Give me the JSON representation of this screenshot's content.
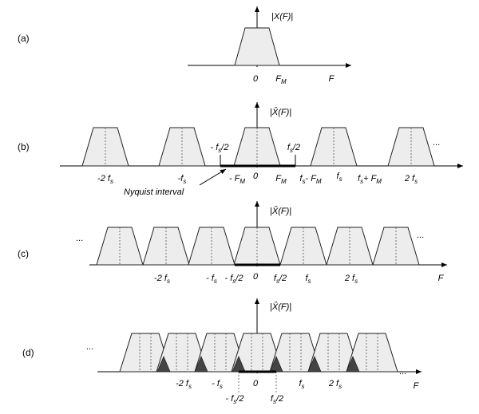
{
  "panels": [
    {
      "id": "a",
      "label": "(a)",
      "spectrum_label": "|X(F)|",
      "tick_labels": [
        {
          "key": "zero",
          "text": "0"
        },
        {
          "key": "fm",
          "text": "F",
          "sub": "M"
        },
        {
          "key": "axis",
          "text": "F"
        }
      ]
    },
    {
      "id": "b",
      "label": "(b)",
      "spectrum_label": "|X̂(F)|",
      "ellipsis": "...",
      "callout": "Nyquist interval",
      "tick_labels": [
        {
          "key": "m2fs",
          "text": "-2 f",
          "sub": "s"
        },
        {
          "key": "mfs",
          "text": "-f",
          "sub": "s"
        },
        {
          "key": "mfs2",
          "text": "- f",
          "sub": "s",
          "tail": "/2"
        },
        {
          "key": "mfm",
          "text": "- F",
          "sub": "M"
        },
        {
          "key": "zero",
          "text": "0"
        },
        {
          "key": "fm",
          "text": "F",
          "sub": "M"
        },
        {
          "key": "fs2",
          "text": "f",
          "sub": "s",
          "tail": "/2"
        },
        {
          "key": "fsmfm",
          "text": "f",
          "sub": "s",
          "tail": "- F",
          "sub2": "M"
        },
        {
          "key": "fs",
          "text": "f",
          "sub": "s"
        },
        {
          "key": "fspfm",
          "text": "f",
          "sub": "s",
          "tail": "+ F",
          "sub2": "M"
        },
        {
          "key": "p2fs",
          "text": "2 f",
          "sub": "s"
        }
      ]
    },
    {
      "id": "c",
      "label": "(c)",
      "spectrum_label": "|X̂(F)|",
      "ellipsis_left": "...",
      "ellipsis_right": "...",
      "tick_labels": [
        {
          "key": "m2fs",
          "text": "-2 f",
          "sub": "s"
        },
        {
          "key": "mfs",
          "text": "- f",
          "sub": "s"
        },
        {
          "key": "mfs2",
          "text": "- f",
          "sub": "s",
          "tail": "/2"
        },
        {
          "key": "zero",
          "text": "0"
        },
        {
          "key": "fs2",
          "text": "f",
          "sub": "s",
          "tail": "/2"
        },
        {
          "key": "fs",
          "text": "f",
          "sub": "s"
        },
        {
          "key": "p2fs",
          "text": "2 f",
          "sub": "s"
        },
        {
          "key": "axis",
          "text": "F"
        }
      ]
    },
    {
      "id": "d",
      "label": "(d)",
      "spectrum_label": "|X̂(F)|",
      "ellipsis_left": "...",
      "ellipsis_right": "...",
      "tick_labels": [
        {
          "key": "m2fs",
          "text": "-2 f",
          "sub": "s"
        },
        {
          "key": "mfs",
          "text": "- f",
          "sub": "s"
        },
        {
          "key": "zero",
          "text": "0"
        },
        {
          "key": "fs",
          "text": "f",
          "sub": "s"
        },
        {
          "key": "p2fs",
          "text": "2 f",
          "sub": "s"
        },
        {
          "key": "axis",
          "text": "F"
        },
        {
          "key": "mfs2",
          "text": "- f",
          "sub": "s",
          "tail": "/2"
        },
        {
          "key": "fs2",
          "text": "f",
          "sub": "s",
          "tail": "/2"
        }
      ]
    }
  ]
}
